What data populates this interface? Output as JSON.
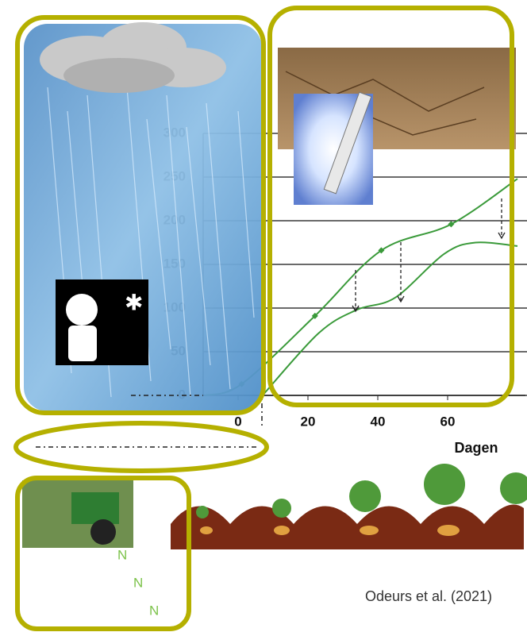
{
  "chart_data": {
    "type": "line",
    "xlabel": "Dagen",
    "xlim": [
      -10,
      80
    ],
    "xticks": [
      0,
      20,
      40,
      60
    ],
    "ylim": [
      0,
      300
    ],
    "yticks": [
      0,
      50,
      100,
      150,
      200,
      250,
      300
    ],
    "grid": true,
    "series": [
      {
        "color": "#3a9a3a",
        "x": [
          -9.5,
          1,
          22,
          41,
          61,
          80
        ],
        "values": [
          0,
          13,
          91,
          166,
          196,
          248
        ],
        "markers": true
      },
      {
        "color": "#3a9a3a",
        "x": [
          7,
          23,
          34,
          45,
          59,
          68,
          80
        ],
        "values": [
          0,
          71,
          98,
          112,
          162,
          175,
          171
        ],
        "markers": false
      }
    ],
    "annotations": {
      "citation": "Odeurs et al. (2021)",
      "fertilizer": [
        "N",
        "N",
        "N"
      ]
    }
  }
}
